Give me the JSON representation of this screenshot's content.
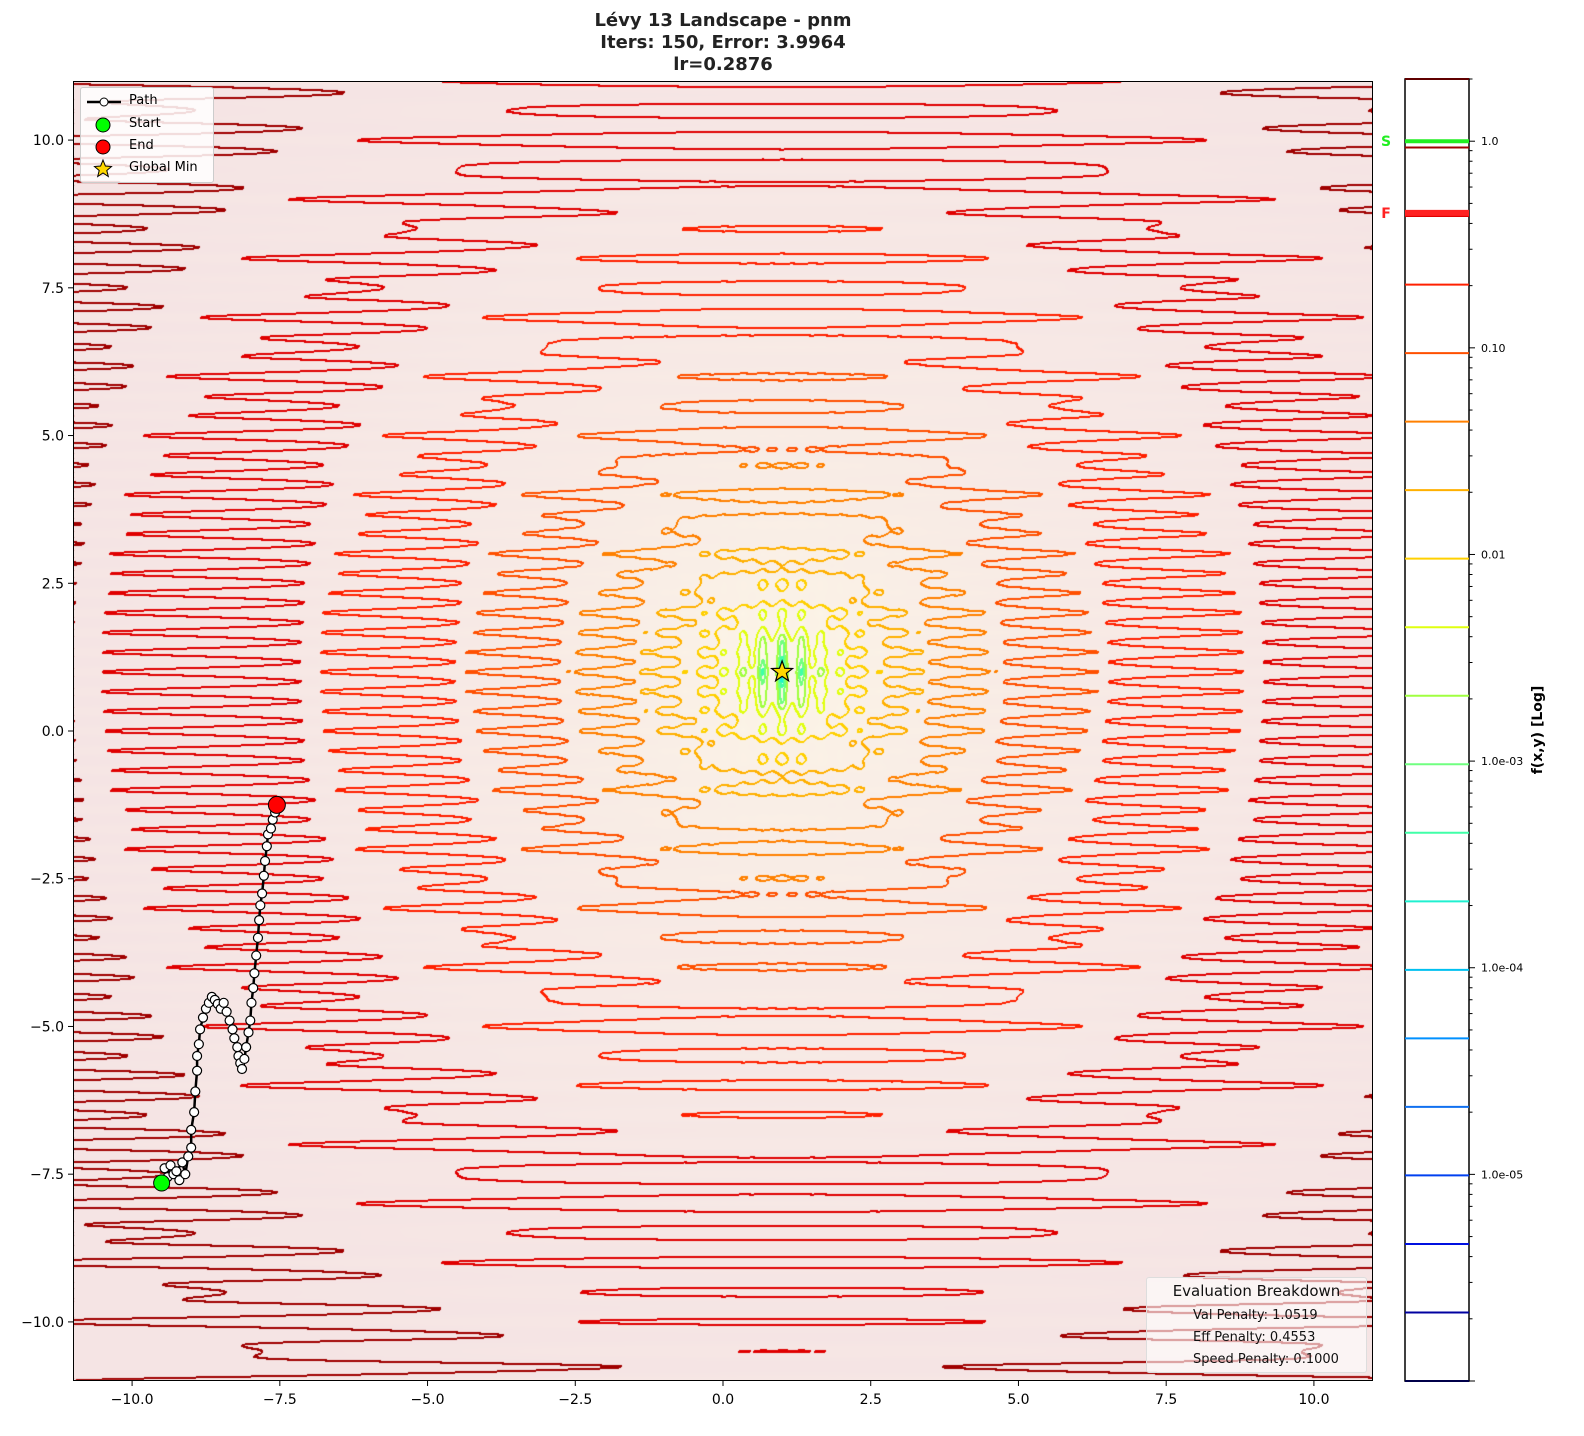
{
  "chart_data": {
    "type": "contour",
    "title": [
      "Lévy 13 Landscape - pnm",
      "Iters: 150, Error: 3.9964",
      "lr=0.2876"
    ],
    "xlim": [
      -11,
      11
    ],
    "ylim": [
      -11,
      11
    ],
    "x_ticks": [
      "−10.0",
      "−7.5",
      "−5.0",
      "−2.5",
      "0.0",
      "2.5",
      "5.0",
      "7.5",
      "10.0"
    ],
    "x_tick_values": [
      -10,
      -7.5,
      -5,
      -2.5,
      0,
      2.5,
      5,
      7.5,
      10
    ],
    "y_ticks": [
      "10.0",
      "7.5",
      "5.0",
      "2.5",
      "0.0",
      "−2.5",
      "−5.0",
      "−7.5",
      "−10.0"
    ],
    "y_tick_values": [
      10,
      7.5,
      5,
      2.5,
      0,
      -2.5,
      -5,
      -7.5,
      -10
    ],
    "function": "Lévy N.13",
    "scale": "log",
    "global_min": [
      1,
      1
    ],
    "start": [
      -9.5,
      -7.65
    ],
    "end": [
      -7.55,
      -1.25
    ],
    "path": [
      [
        -9.5,
        -7.65
      ],
      [
        -9.4,
        -7.55
      ],
      [
        -9.45,
        -7.4
      ],
      [
        -9.3,
        -7.5
      ],
      [
        -9.35,
        -7.35
      ],
      [
        -9.2,
        -7.6
      ],
      [
        -9.25,
        -7.45
      ],
      [
        -9.15,
        -7.3
      ],
      [
        -9.1,
        -7.5
      ],
      [
        -9.05,
        -7.2
      ],
      [
        -9.0,
        -7.05
      ],
      [
        -9.0,
        -6.75
      ],
      [
        -8.95,
        -6.45
      ],
      [
        -8.93,
        -6.1
      ],
      [
        -8.9,
        -5.75
      ],
      [
        -8.9,
        -5.5
      ],
      [
        -8.87,
        -5.3
      ],
      [
        -8.85,
        -5.05
      ],
      [
        -8.8,
        -4.85
      ],
      [
        -8.75,
        -4.7
      ],
      [
        -8.7,
        -4.6
      ],
      [
        -8.65,
        -4.5
      ],
      [
        -8.6,
        -4.55
      ],
      [
        -8.55,
        -4.62
      ],
      [
        -8.5,
        -4.7
      ],
      [
        -8.45,
        -4.6
      ],
      [
        -8.4,
        -4.75
      ],
      [
        -8.35,
        -4.9
      ],
      [
        -8.3,
        -5.05
      ],
      [
        -8.27,
        -5.2
      ],
      [
        -8.22,
        -5.35
      ],
      [
        -8.2,
        -5.5
      ],
      [
        -8.17,
        -5.62
      ],
      [
        -8.14,
        -5.72
      ],
      [
        -8.1,
        -5.55
      ],
      [
        -8.07,
        -5.35
      ],
      [
        -8.03,
        -5.1
      ],
      [
        -8.0,
        -4.9
      ],
      [
        -7.98,
        -4.6
      ],
      [
        -7.95,
        -4.35
      ],
      [
        -7.93,
        -4.1
      ],
      [
        -7.9,
        -3.8
      ],
      [
        -7.87,
        -3.5
      ],
      [
        -7.85,
        -3.2
      ],
      [
        -7.83,
        -2.95
      ],
      [
        -7.8,
        -2.75
      ],
      [
        -7.77,
        -2.45
      ],
      [
        -7.75,
        -2.2
      ],
      [
        -7.72,
        -1.95
      ],
      [
        -7.7,
        -1.75
      ],
      [
        -7.65,
        -1.65
      ],
      [
        -7.62,
        -1.5
      ],
      [
        -7.58,
        -1.38
      ],
      [
        -7.55,
        -1.25
      ]
    ],
    "colorbar": {
      "label": "f(x,y) [Log]",
      "ticks": [
        "1.0",
        "0.10",
        "0.01",
        "1.0e-03",
        "1.0e-04",
        "1.0e-05"
      ],
      "tick_values": [
        1,
        0.1,
        0.01,
        0.001,
        0.0001,
        1e-05
      ],
      "range": [
        1e-06,
        2
      ],
      "markers": [
        {
          "label": "S",
          "value": 1.0,
          "color": "#22ee22"
        },
        {
          "label": "F",
          "value": 0.45,
          "color": "#ff2222"
        }
      ]
    },
    "legend": {
      "placement": "top-left",
      "items": [
        "Path",
        "Start",
        "End",
        "Global Min"
      ]
    },
    "colors": {
      "start": "#00ff00",
      "end": "#ff0000",
      "star": "#ffd700",
      "path": "#000000"
    }
  },
  "evaluation": {
    "title": "Evaluation Breakdown",
    "rows": [
      "Val Penalty: 1.0519",
      "Eff Penalty: 0.4553",
      "Speed Penalty: 0.1000"
    ]
  }
}
